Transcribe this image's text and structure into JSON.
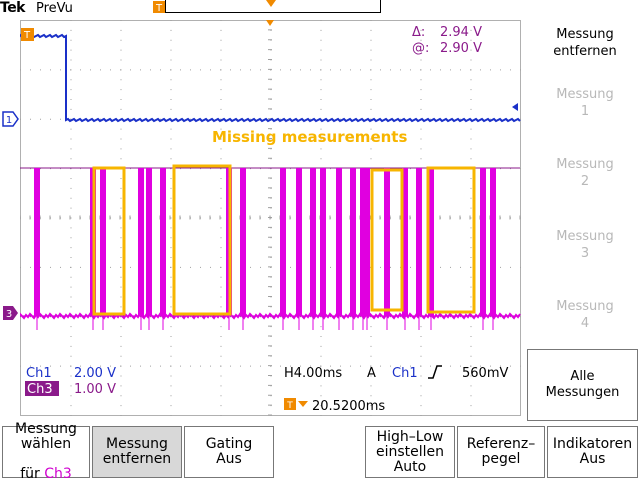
{
  "header": {
    "brand": "Tek",
    "status": "PreVu",
    "trigger_pos_marker": "T",
    "trigger_level_marker": "T"
  },
  "cursor_readout": {
    "delta_label": "Δ:",
    "delta_value": "2.94 V",
    "at_label": "@:",
    "at_value": "2.90 V"
  },
  "annotation": {
    "text": "Missing measurements",
    "color": "#f7b500"
  },
  "channel_markers": {
    "ch1": "1",
    "ch3": "3"
  },
  "channels": {
    "ch1_label": "Ch1",
    "ch1_scale": "2.00 V",
    "ch3_label": "Ch3",
    "ch3_scale": "1.00 V",
    "ch1_color": "#1a30c8",
    "ch3_color": "#e000e0"
  },
  "timebase": {
    "horizontal": "H4.00ms",
    "acq": "A",
    "trigger_source": "Ch1",
    "slope_icon": "rising-edge-icon",
    "trigger_level": "560mV",
    "position_marker": "T",
    "position": "20.5200ms"
  },
  "right_menu": {
    "title_line1": "Messung",
    "title_line2": "entfernen",
    "items": [
      {
        "line1": "Messung",
        "line2": "1"
      },
      {
        "line1": "Messung",
        "line2": "2"
      },
      {
        "line1": "Messung",
        "line2": "3"
      },
      {
        "line1": "Messung",
        "line2": "4"
      }
    ],
    "alle_line1": "Alle",
    "alle_line2": "Messungen"
  },
  "bottom_menu": {
    "b1_line1": "Messung",
    "b1_line2": "wählen",
    "b1_line3_prefix": "für ",
    "b1_line3_ch": "Ch3",
    "b2_line1": "Messung",
    "b2_line2": "entfernen",
    "b3_line1": "Gating",
    "b3_line2": "Aus",
    "b5_line1": "High–Low",
    "b5_line2": "einstellen",
    "b5_line3": "Auto",
    "b6_line1": "Referenz–",
    "b6_line2": "pegel",
    "b7_line1": "Indikatoren",
    "b7_line2": "Aus"
  }
}
